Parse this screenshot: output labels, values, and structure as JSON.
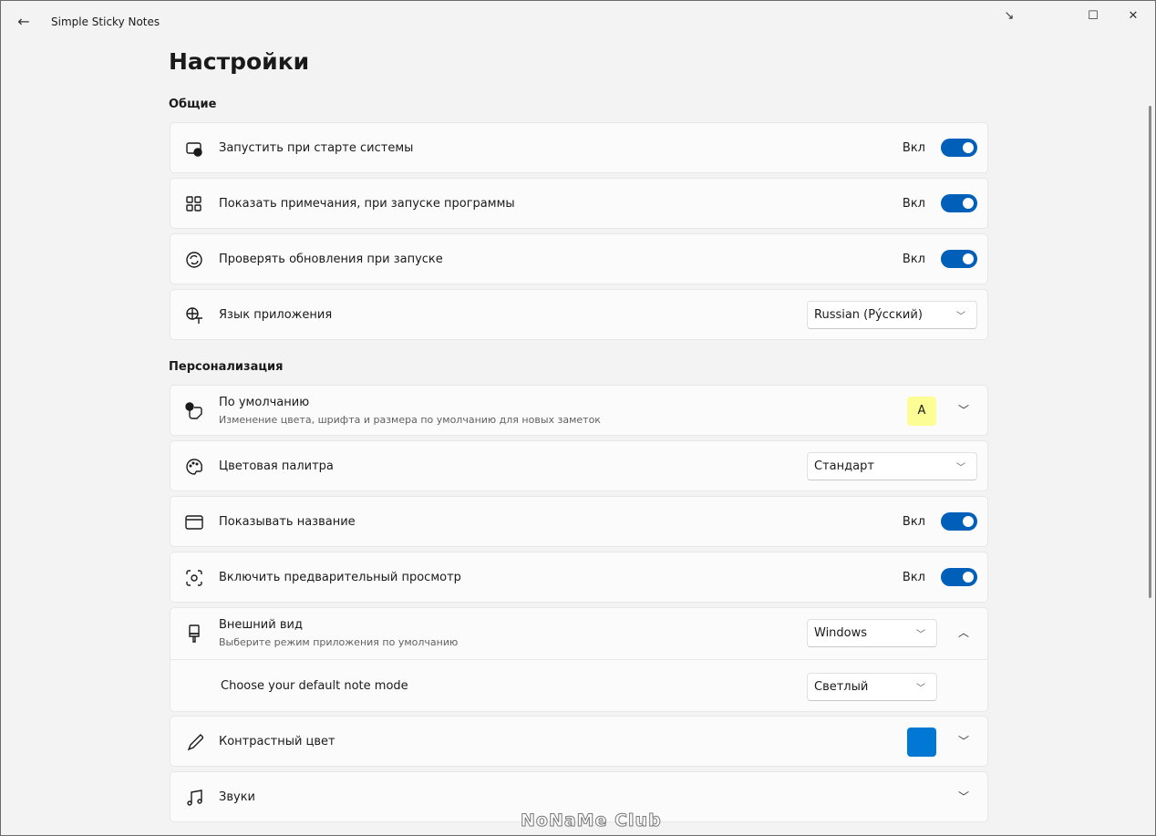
{
  "window": {
    "title": "Simple Sticky Notes",
    "back": "←",
    "minimize_alt": "↘",
    "maximize": "☐",
    "close": "✕"
  },
  "page": {
    "title": "Настройки"
  },
  "sections": {
    "general": "Общие",
    "personalization": "Персонализация"
  },
  "general": [
    {
      "label": "Запустить при старте системы",
      "state": "Вкл",
      "on": true,
      "icon": "startup-icon"
    },
    {
      "label": "Показать примечания, при запуске программы",
      "state": "Вкл",
      "on": true,
      "icon": "grid-icon"
    },
    {
      "label": "Проверять обновления при запуске",
      "state": "Вкл",
      "on": true,
      "icon": "sync-icon"
    },
    {
      "label": "Язык приложения",
      "value": "Russian (Ру́сский)",
      "icon": "language-icon"
    }
  ],
  "personal": {
    "default": {
      "label": "По умолчанию",
      "sub": "Изменение цвета, шрифта и размера по умолчанию для новых заметок",
      "swatch_text": "A",
      "swatch_color": "#fdfd96"
    },
    "palette": {
      "label": "Цветовая палитра",
      "value": "Стандарт"
    },
    "show_title": {
      "label": "Показывать название",
      "state": "Вкл",
      "on": true
    },
    "preview": {
      "label": "Включить предварительный просмотр",
      "state": "Вкл",
      "on": true
    },
    "appearance": {
      "label": "Внешний вид",
      "sub": "Выберите режим приложения по умолчанию",
      "value": "Windows",
      "sub_label": "Choose your default note mode",
      "sub_value": "Светлый"
    },
    "accent": {
      "label": "Контрастный цвет",
      "color": "#0078d4"
    },
    "sounds": {
      "label": "Звуки"
    }
  },
  "watermark": "NoNaMe Club",
  "colors": {
    "toggle_on": "#005fb8"
  }
}
